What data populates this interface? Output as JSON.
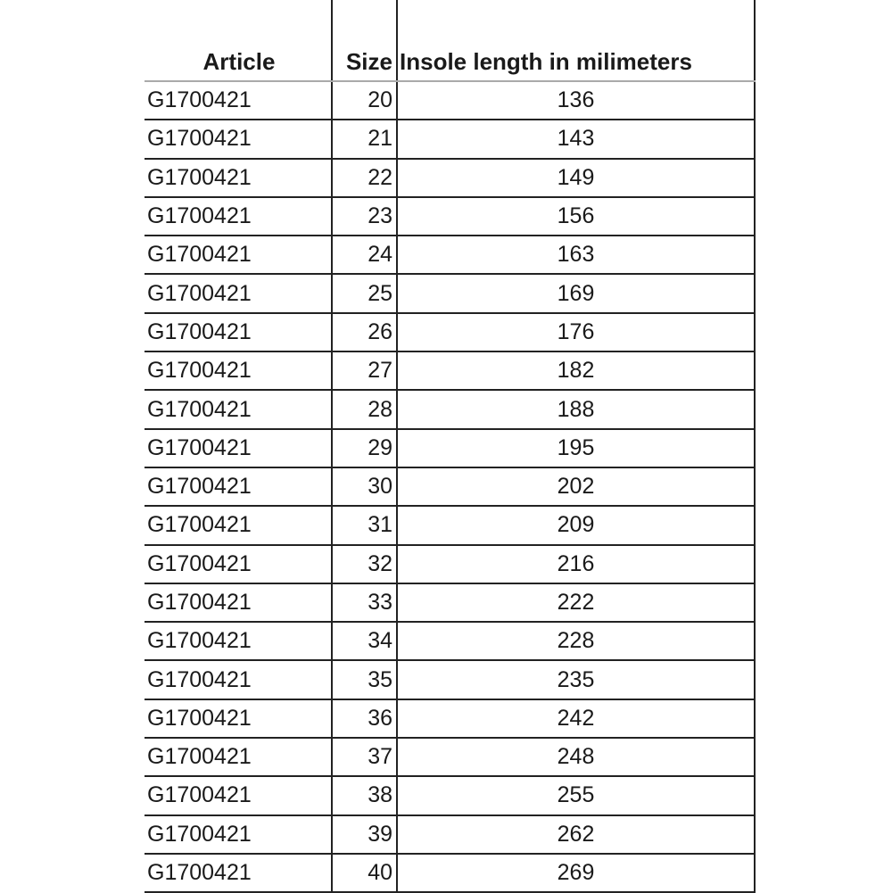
{
  "table": {
    "headers": [
      "Article",
      "Size",
      "Insole length in milimeters"
    ],
    "rows": [
      [
        "G1700421",
        "20",
        "136"
      ],
      [
        "G1700421",
        "21",
        "143"
      ],
      [
        "G1700421",
        "22",
        "149"
      ],
      [
        "G1700421",
        "23",
        "156"
      ],
      [
        "G1700421",
        "24",
        "163"
      ],
      [
        "G1700421",
        "25",
        "169"
      ],
      [
        "G1700421",
        "26",
        "176"
      ],
      [
        "G1700421",
        "27",
        "182"
      ],
      [
        "G1700421",
        "28",
        "188"
      ],
      [
        "G1700421",
        "29",
        "195"
      ],
      [
        "G1700421",
        "30",
        "202"
      ],
      [
        "G1700421",
        "31",
        "209"
      ],
      [
        "G1700421",
        "32",
        "216"
      ],
      [
        "G1700421",
        "33",
        "222"
      ],
      [
        "G1700421",
        "34",
        "228"
      ],
      [
        "G1700421",
        "35",
        "235"
      ],
      [
        "G1700421",
        "36",
        "242"
      ],
      [
        "G1700421",
        "37",
        "248"
      ],
      [
        "G1700421",
        "38",
        "255"
      ],
      [
        "G1700421",
        "39",
        "262"
      ],
      [
        "G1700421",
        "40",
        "269"
      ]
    ]
  }
}
